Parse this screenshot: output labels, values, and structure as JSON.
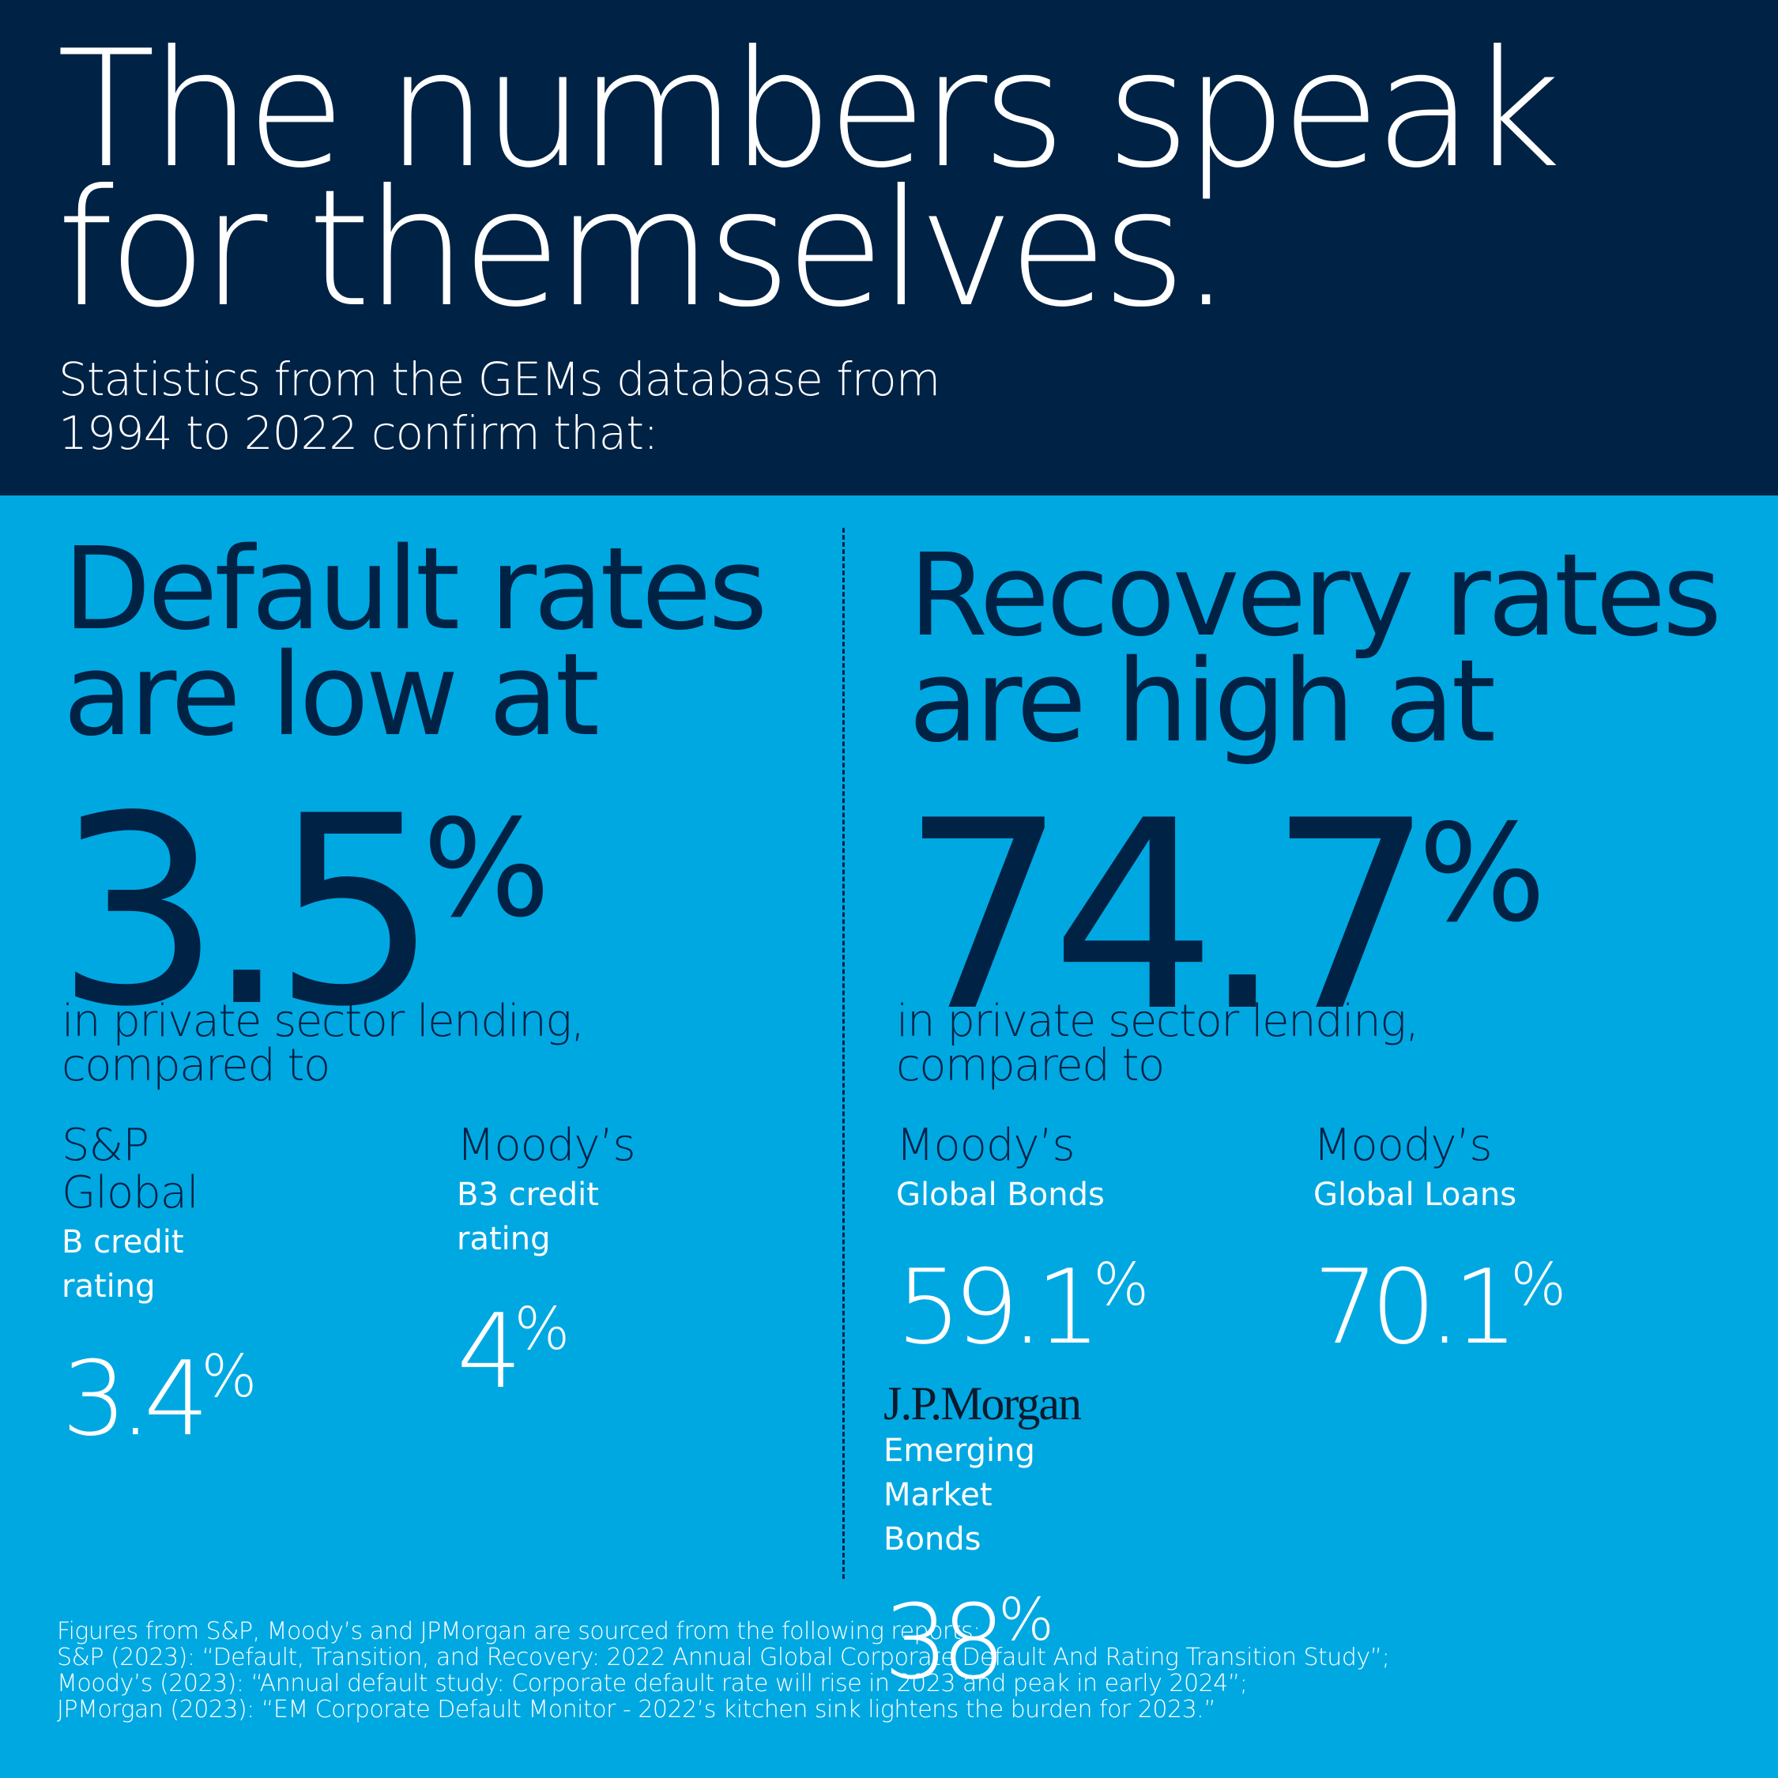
{
  "header": {
    "title_line1": "The numbers speak",
    "title_line2": "for themselves.",
    "subtitle_line1": "Statistics from the GEMs database from",
    "subtitle_line2": "1994 to 2022 confirm that:"
  },
  "default": {
    "heading_line1": "Default rates",
    "heading_line2": "are low at",
    "value": "3.5",
    "unit": "%",
    "desc_line1": "in private sector lending,",
    "desc_line2": "compared to",
    "stats": [
      {
        "source": "S&P Global",
        "detail": "B credit rating",
        "value": "3.4",
        "unit": "%"
      },
      {
        "source": "Moody’s",
        "detail": "B3 credit rating",
        "value": "4",
        "unit": "%"
      }
    ]
  },
  "recovery": {
    "heading_line1": "Recovery rates",
    "heading_line2": "are high at",
    "value": "74.7",
    "unit": "%",
    "desc_line1": "in private sector lending,",
    "desc_line2": "compared to",
    "stats": [
      {
        "source": "Moody’s",
        "detail": "Global Bonds",
        "value": "59.1",
        "unit": "%"
      },
      {
        "source": "Moody’s",
        "detail": "Global Loans",
        "value": "70.1",
        "unit": "%"
      },
      {
        "source": "J.P.Morgan",
        "detail": "Emerging Market Bonds",
        "value": "38",
        "unit": "%"
      }
    ]
  },
  "footer": {
    "lines": [
      "Figures from S&P, Moody’s and JPMorgan are sourced from the following reports:",
      "S&P (2023): “Default, Transition, and Recovery: 2022 Annual Global Corporate Default And Rating Transition Study”;",
      "Moody’s (2023): “Annual default study: Corporate default rate will rise in 2023 and peak in early 2024”;",
      "JPMorgan (2023): “EM Corporate Default Monitor - 2022’s kitchen sink lightens the burden for 2023.”"
    ]
  },
  "colors": {
    "navy": "#002245",
    "cyan": "#00a8e2",
    "white": "#ffffff"
  }
}
